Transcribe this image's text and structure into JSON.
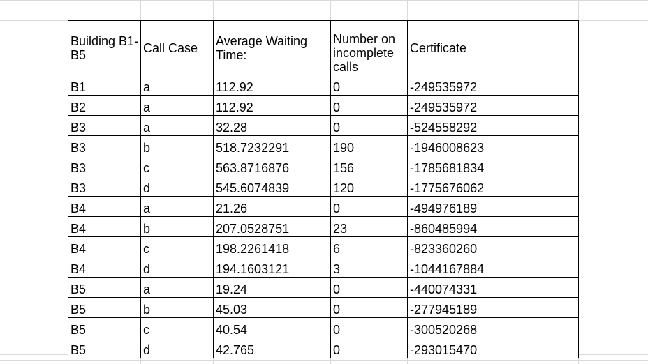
{
  "sheet": {
    "headers": [
      "Building B1-B5",
      "Call Case",
      "Average Waiting Time:",
      "Number on incomplete calls",
      "Certificate"
    ],
    "rows": [
      [
        "B1",
        "a",
        "112.92",
        "0",
        "-249535972"
      ],
      [
        "B2",
        "a",
        "112.92",
        "0",
        "-249535972"
      ],
      [
        "B3",
        "a",
        "32.28",
        "0",
        "-524558292"
      ],
      [
        "B3",
        "b",
        "518.7232291",
        "190",
        "-1946008623"
      ],
      [
        "B3",
        "c",
        "563.8716876",
        "156",
        "-1785681834"
      ],
      [
        "B3",
        "d",
        "545.6074839",
        "120",
        "-1775676062"
      ],
      [
        "B4",
        "a",
        "21.26",
        "0",
        "-494976189"
      ],
      [
        "B4",
        "b",
        "207.0528751",
        "23",
        "-860485994"
      ],
      [
        "B4",
        "c",
        "198.2261418",
        "6",
        "-823360260"
      ],
      [
        "B4",
        "d",
        "194.1603121",
        "3",
        "-1044167884"
      ],
      [
        "B5",
        "a",
        "19.24",
        "0",
        "-440074331"
      ],
      [
        "B5",
        "b",
        "45.03",
        "0",
        "-277945189"
      ],
      [
        "B5",
        "c",
        "40.54",
        "0",
        "-300520268"
      ],
      [
        "B5",
        "d",
        "42.765",
        "0",
        "-293015470"
      ]
    ]
  }
}
